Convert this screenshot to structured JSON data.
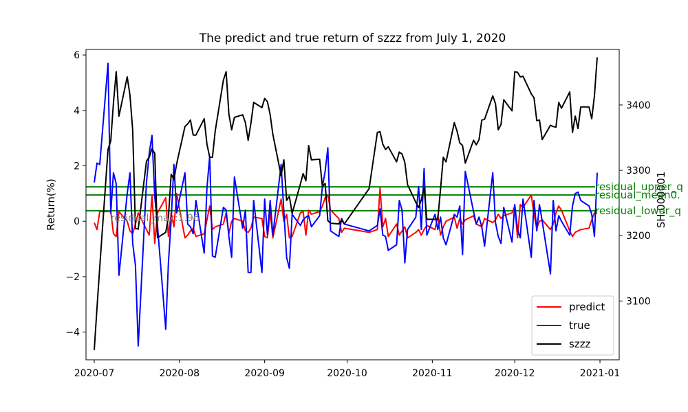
{
  "chart_data": {
    "type": "line",
    "title": "The predict and true return of szzz from July 1, 2020",
    "ylabel": "Return(%)",
    "y2label": "SH.000001",
    "ylim": [
      -5,
      6.2
    ],
    "y2lim": [
      3010,
      3485
    ],
    "yticks": [
      -4,
      -2,
      0,
      2,
      4,
      6
    ],
    "yticklabels": [
      "−4",
      "−2",
      "0",
      "2",
      "4",
      "6"
    ],
    "y2ticks": [
      3100,
      3200,
      3300,
      3400
    ],
    "y2ticklabels": [
      "3100",
      "3200",
      "3300",
      "3400"
    ],
    "xlim": [
      "2020-06-28",
      "2021-01-08"
    ],
    "xticks": [
      "2020-07-01",
      "2020-08-01",
      "2020-09-01",
      "2020-10-01",
      "2020-11-01",
      "2020-12-01",
      "2021-01-01"
    ],
    "xticklabels": [
      "2020-07",
      "2020-08",
      "2020-09",
      "2020-10",
      "2020-11",
      "2020-12",
      "2021-01"
    ],
    "grid": false,
    "legend_position": "lower-right",
    "series": [
      {
        "name": "predict",
        "axis": "left",
        "color": "#ff0000",
        "x": [
          "2020-07-01",
          "2020-07-02",
          "2020-07-03",
          "2020-07-06",
          "2020-07-07",
          "2020-07-08",
          "2020-07-09",
          "2020-07-10",
          "2020-07-13",
          "2020-07-14",
          "2020-07-15",
          "2020-07-16",
          "2020-07-17",
          "2020-07-20",
          "2020-07-21",
          "2020-07-22",
          "2020-07-23",
          "2020-07-24",
          "2020-07-27",
          "2020-07-28",
          "2020-07-29",
          "2020-07-30",
          "2020-07-31",
          "2020-08-03",
          "2020-08-04",
          "2020-08-05",
          "2020-08-06",
          "2020-08-07",
          "2020-08-10",
          "2020-08-11",
          "2020-08-12",
          "2020-08-13",
          "2020-08-14",
          "2020-08-17",
          "2020-08-18",
          "2020-08-19",
          "2020-08-20",
          "2020-08-21",
          "2020-08-24",
          "2020-08-25",
          "2020-08-26",
          "2020-08-27",
          "2020-08-28",
          "2020-08-31",
          "2020-09-01",
          "2020-09-02",
          "2020-09-03",
          "2020-09-04",
          "2020-09-07",
          "2020-09-08",
          "2020-09-09",
          "2020-09-10",
          "2020-09-11",
          "2020-09-14",
          "2020-09-15",
          "2020-09-16",
          "2020-09-17",
          "2020-09-18",
          "2020-09-21",
          "2020-09-22",
          "2020-09-23",
          "2020-09-24",
          "2020-09-25",
          "2020-09-28",
          "2020-09-29",
          "2020-09-30",
          "2020-10-09",
          "2020-10-12",
          "2020-10-13",
          "2020-10-14",
          "2020-10-15",
          "2020-10-16",
          "2020-10-19",
          "2020-10-20",
          "2020-10-21",
          "2020-10-22",
          "2020-10-23",
          "2020-10-26",
          "2020-10-27",
          "2020-10-28",
          "2020-10-29",
          "2020-10-30",
          "2020-11-02",
          "2020-11-03",
          "2020-11-04",
          "2020-11-05",
          "2020-11-06",
          "2020-11-09",
          "2020-11-10",
          "2020-11-11",
          "2020-11-12",
          "2020-11-13",
          "2020-11-16",
          "2020-11-17",
          "2020-11-18",
          "2020-11-19",
          "2020-11-20",
          "2020-11-23",
          "2020-11-24",
          "2020-11-25",
          "2020-11-26",
          "2020-11-27",
          "2020-11-30",
          "2020-12-01",
          "2020-12-02",
          "2020-12-03",
          "2020-12-04",
          "2020-12-07",
          "2020-12-08",
          "2020-12-09",
          "2020-12-10",
          "2020-12-11",
          "2020-12-14",
          "2020-12-15",
          "2020-12-16",
          "2020-12-17",
          "2020-12-18",
          "2020-12-21",
          "2020-12-22",
          "2020-12-23",
          "2020-12-24",
          "2020-12-25",
          "2020-12-28",
          "2020-12-29",
          "2020-12-30",
          "2020-12-31"
        ],
        "values": [
          -0.05,
          -0.3,
          0.35,
          0.35,
          0.35,
          -0.45,
          -0.55,
          0.35,
          0.0,
          -0.35,
          -0.45,
          -0.1,
          0.3,
          -0.3,
          -0.5,
          0.95,
          -0.8,
          0.3,
          0.85,
          -0.55,
          0.3,
          -0.2,
          1.0,
          -0.6,
          -0.5,
          -0.35,
          -0.25,
          -0.55,
          -0.45,
          0.05,
          0.55,
          -0.3,
          -0.2,
          -0.1,
          0.3,
          -0.45,
          0.0,
          0.1,
          0.0,
          -0.35,
          -0.4,
          -0.25,
          0.15,
          0.1,
          -0.55,
          -0.6,
          0.35,
          -0.6,
          0.8,
          0.0,
          0.25,
          -0.6,
          -0.55,
          0.3,
          0.35,
          -0.5,
          0.4,
          0.25,
          0.35,
          0.55,
          0.85,
          0.95,
          0.4,
          0.1,
          -0.4,
          -0.25,
          -0.4,
          -0.3,
          1.2,
          -0.2,
          0.1,
          -0.55,
          -0.1,
          -0.5,
          -0.35,
          -0.2,
          -0.6,
          -0.4,
          -0.3,
          -0.5,
          -0.3,
          -0.15,
          -0.3,
          0.2,
          -0.5,
          -0.2,
          0.0,
          0.15,
          -0.25,
          0.1,
          -0.1,
          0.05,
          0.2,
          -0.1,
          -0.15,
          -0.2,
          0.1,
          -0.05,
          0.05,
          0.25,
          0.1,
          0.2,
          0.3,
          0.55,
          -0.6,
          0.6,
          0.5,
          0.95,
          0.25,
          -0.25,
          0.0,
          0.05,
          -0.3,
          -0.1,
          0.3,
          0.55,
          0.4,
          -0.35,
          -0.55,
          -0.4,
          -0.35,
          -0.3,
          -0.25,
          0.05,
          0.3,
          0.4
        ]
      },
      {
        "name": "true",
        "axis": "left",
        "color": "#0000ff",
        "x": [
          "2020-07-01",
          "2020-07-02",
          "2020-07-03",
          "2020-07-06",
          "2020-07-07",
          "2020-07-08",
          "2020-07-09",
          "2020-07-10",
          "2020-07-13",
          "2020-07-14",
          "2020-07-15",
          "2020-07-16",
          "2020-07-17",
          "2020-07-20",
          "2020-07-21",
          "2020-07-22",
          "2020-07-23",
          "2020-07-24",
          "2020-07-27",
          "2020-07-28",
          "2020-07-29",
          "2020-07-30",
          "2020-07-31",
          "2020-08-03",
          "2020-08-04",
          "2020-08-05",
          "2020-08-06",
          "2020-08-07",
          "2020-08-10",
          "2020-08-11",
          "2020-08-12",
          "2020-08-13",
          "2020-08-14",
          "2020-08-17",
          "2020-08-18",
          "2020-08-19",
          "2020-08-20",
          "2020-08-21",
          "2020-08-24",
          "2020-08-25",
          "2020-08-26",
          "2020-08-27",
          "2020-08-28",
          "2020-08-31",
          "2020-09-01",
          "2020-09-02",
          "2020-09-03",
          "2020-09-04",
          "2020-09-07",
          "2020-09-08",
          "2020-09-09",
          "2020-09-10",
          "2020-09-11",
          "2020-09-14",
          "2020-09-15",
          "2020-09-16",
          "2020-09-17",
          "2020-09-18",
          "2020-09-21",
          "2020-09-22",
          "2020-09-23",
          "2020-09-24",
          "2020-09-25",
          "2020-09-28",
          "2020-09-29",
          "2020-09-30",
          "2020-10-09",
          "2020-10-12",
          "2020-10-13",
          "2020-10-14",
          "2020-10-15",
          "2020-10-16",
          "2020-10-19",
          "2020-10-20",
          "2020-10-21",
          "2020-10-22",
          "2020-10-23",
          "2020-10-26",
          "2020-10-27",
          "2020-10-28",
          "2020-10-29",
          "2020-10-30",
          "2020-11-02",
          "2020-11-03",
          "2020-11-04",
          "2020-11-05",
          "2020-11-06",
          "2020-11-09",
          "2020-11-10",
          "2020-11-11",
          "2020-11-12",
          "2020-11-13",
          "2020-11-16",
          "2020-11-17",
          "2020-11-18",
          "2020-11-19",
          "2020-11-20",
          "2020-11-23",
          "2020-11-24",
          "2020-11-25",
          "2020-11-26",
          "2020-11-27",
          "2020-11-30",
          "2020-12-01",
          "2020-12-02",
          "2020-12-03",
          "2020-12-04",
          "2020-12-07",
          "2020-12-08",
          "2020-12-09",
          "2020-12-10",
          "2020-12-11",
          "2020-12-14",
          "2020-12-15",
          "2020-12-16",
          "2020-12-17",
          "2020-12-18",
          "2020-12-21",
          "2020-12-22",
          "2020-12-23",
          "2020-12-24",
          "2020-12-25",
          "2020-12-28",
          "2020-12-29",
          "2020-12-30",
          "2020-12-31"
        ],
        "values": [
          1.4,
          2.1,
          2.05,
          5.7,
          0.3,
          1.75,
          1.35,
          -1.95,
          1.0,
          1.75,
          -0.8,
          -1.6,
          -4.5,
          1.4,
          2.45,
          3.1,
          0.9,
          -0.15,
          -3.9,
          -1.5,
          0.05,
          2.05,
          0.3,
          1.75,
          -0.1,
          -0.2,
          -0.45,
          0.75,
          -1.15,
          1.2,
          2.35,
          -1.25,
          -1.3,
          0.5,
          0.4,
          -0.55,
          -1.3,
          1.6,
          -0.25,
          0.4,
          -1.85,
          -1.85,
          0.75,
          -1.85,
          0.8,
          -0.5,
          0.75,
          -0.5,
          2.05,
          0.35,
          -1.3,
          -1.7,
          0.25,
          -0.15,
          0.05,
          0.15,
          0.2,
          -0.2,
          0.2,
          1.25,
          1.8,
          2.65,
          -0.35,
          -0.55,
          0.1,
          -0.1,
          -0.35,
          -0.15,
          0.45,
          -0.5,
          -0.55,
          -1.05,
          -0.85,
          0.75,
          0.4,
          -1.5,
          -0.3,
          0.15,
          1.25,
          -0.3,
          1.9,
          -0.5,
          0.25,
          -0.3,
          0.15,
          -0.6,
          -0.85,
          0.25,
          0.15,
          0.55,
          -1.2,
          1.8,
          0.35,
          -0.1,
          0.15,
          -0.2,
          -0.9,
          1.75,
          -0.05,
          -0.55,
          -0.8,
          0.5,
          -0.75,
          0.6,
          -0.3,
          -0.6,
          0.8,
          -1.3,
          0.75,
          -0.35,
          0.6,
          0.0,
          -1.9,
          0.75,
          -0.35,
          0.2,
          0.0,
          -0.5,
          0.55,
          1.0,
          1.05,
          0.75,
          0.55,
          0.25,
          -0.55,
          1.75
        ]
      },
      {
        "name": "szzz",
        "axis": "right",
        "color": "#000000",
        "x": [
          "2020-07-01",
          "2020-07-02",
          "2020-07-03",
          "2020-07-06",
          "2020-07-07",
          "2020-07-08",
          "2020-07-09",
          "2020-07-10",
          "2020-07-13",
          "2020-07-14",
          "2020-07-15",
          "2020-07-16",
          "2020-07-17",
          "2020-07-20",
          "2020-07-21",
          "2020-07-22",
          "2020-07-23",
          "2020-07-24",
          "2020-07-27",
          "2020-07-28",
          "2020-07-29",
          "2020-07-30",
          "2020-07-31",
          "2020-08-03",
          "2020-08-04",
          "2020-08-05",
          "2020-08-06",
          "2020-08-07",
          "2020-08-10",
          "2020-08-11",
          "2020-08-12",
          "2020-08-13",
          "2020-08-14",
          "2020-08-17",
          "2020-08-18",
          "2020-08-19",
          "2020-08-20",
          "2020-08-21",
          "2020-08-24",
          "2020-08-25",
          "2020-08-26",
          "2020-08-27",
          "2020-08-28",
          "2020-08-31",
          "2020-09-01",
          "2020-09-02",
          "2020-09-03",
          "2020-09-04",
          "2020-09-07",
          "2020-09-08",
          "2020-09-09",
          "2020-09-10",
          "2020-09-11",
          "2020-09-14",
          "2020-09-15",
          "2020-09-16",
          "2020-09-17",
          "2020-09-18",
          "2020-09-21",
          "2020-09-22",
          "2020-09-23",
          "2020-09-24",
          "2020-09-25",
          "2020-09-28",
          "2020-09-29",
          "2020-09-30",
          "2020-10-09",
          "2020-10-12",
          "2020-10-13",
          "2020-10-14",
          "2020-10-15",
          "2020-10-16",
          "2020-10-19",
          "2020-10-20",
          "2020-10-21",
          "2020-10-22",
          "2020-10-23",
          "2020-10-26",
          "2020-10-27",
          "2020-10-28",
          "2020-10-29",
          "2020-10-30",
          "2020-11-02",
          "2020-11-03",
          "2020-11-04",
          "2020-11-05",
          "2020-11-06",
          "2020-11-09",
          "2020-11-10",
          "2020-11-11",
          "2020-11-12",
          "2020-11-13",
          "2020-11-16",
          "2020-11-17",
          "2020-11-18",
          "2020-11-19",
          "2020-11-20",
          "2020-11-23",
          "2020-11-24",
          "2020-11-25",
          "2020-11-26",
          "2020-11-27",
          "2020-11-30",
          "2020-12-01",
          "2020-12-02",
          "2020-12-03",
          "2020-12-04",
          "2020-12-07",
          "2020-12-08",
          "2020-12-09",
          "2020-12-10",
          "2020-12-11",
          "2020-12-14",
          "2020-12-15",
          "2020-12-16",
          "2020-12-17",
          "2020-12-18",
          "2020-12-21",
          "2020-12-22",
          "2020-12-23",
          "2020-12-24",
          "2020-12-25",
          "2020-12-28",
          "2020-12-29",
          "2020-12-30",
          "2020-12-31"
        ],
        "values": [
          3025,
          3090,
          3152,
          3332,
          3345,
          3403,
          3451,
          3383,
          3443,
          3415,
          3361,
          3211,
          3210,
          3314,
          3320,
          3333,
          3326,
          3197,
          3205,
          3228,
          3294,
          3286,
          3310,
          3367,
          3371,
          3377,
          3354,
          3354,
          3379,
          3340,
          3320,
          3320,
          3360,
          3438,
          3451,
          3386,
          3362,
          3381,
          3385,
          3373,
          3346,
          3372,
          3404,
          3396,
          3410,
          3405,
          3385,
          3355,
          3292,
          3316,
          3254,
          3260,
          3234,
          3279,
          3295,
          3284,
          3338,
          3316,
          3317,
          3275,
          3280,
          3223,
          3219,
          3218,
          3224,
          3218,
          3272,
          3358,
          3359,
          3340,
          3332,
          3336,
          3313,
          3328,
          3325,
          3312,
          3278,
          3251,
          3243,
          3255,
          3273,
          3225,
          3225,
          3225,
          3271,
          3320,
          3313,
          3373,
          3360,
          3342,
          3338,
          3311,
          3346,
          3339,
          3347,
          3377,
          3378,
          3414,
          3402,
          3362,
          3370,
          3408,
          3391,
          3451,
          3450,
          3443,
          3444,
          3417,
          3411,
          3376,
          3377,
          3347,
          3369,
          3367,
          3366,
          3404,
          3395,
          3420,
          3358,
          3383,
          3364,
          3397,
          3397,
          3379,
          3414,
          3473
        ]
      }
    ],
    "hlines": [
      {
        "label": "residual_upper_q",
        "value": 1.24,
        "color": "#008000"
      },
      {
        "label": "residual_mean0.",
        "value": 0.95,
        "color": "#008000"
      },
      {
        "label": "residual_lower_q",
        "value": 0.38,
        "color": "#008000"
      }
    ],
    "annotation": {
      "text": "residual_max:1.96",
      "x": "2020-07-06",
      "y": 0.0,
      "color": "#808080"
    },
    "legend": [
      {
        "label": "predict",
        "color": "#ff0000"
      },
      {
        "label": "true",
        "color": "#0000ff"
      },
      {
        "label": "szzz",
        "color": "#000000"
      }
    ]
  }
}
